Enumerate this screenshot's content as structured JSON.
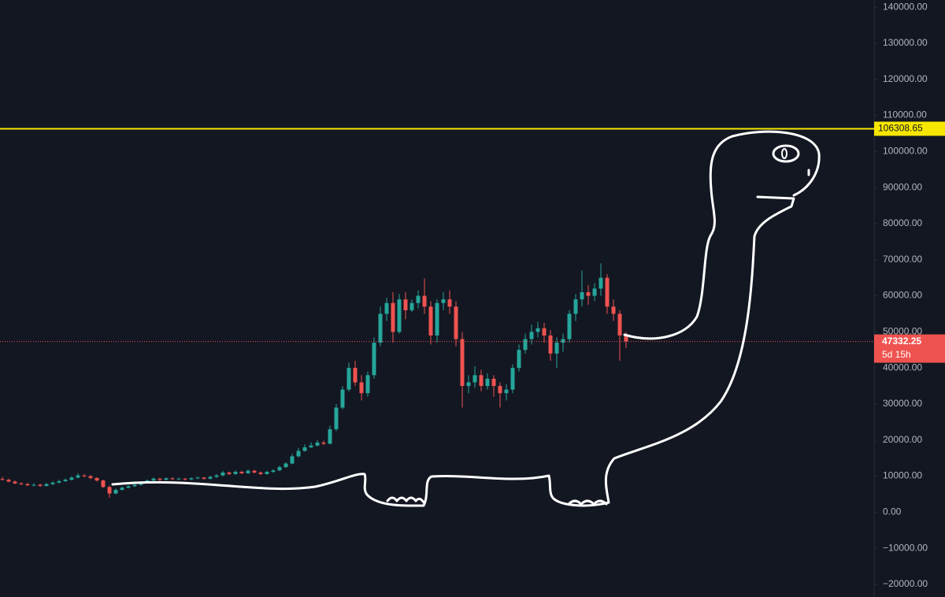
{
  "chart_data": {
    "type": "candlestick",
    "up_color": "#26a69a",
    "down_color": "#ef5350",
    "open": [
      9200,
      9000,
      8500,
      8000,
      7800,
      7500,
      7600,
      7300,
      7800,
      8200,
      8600,
      9000,
      9600,
      10200,
      10000,
      9500,
      8800,
      7000,
      5200,
      6200,
      6800,
      7200,
      7600,
      8200,
      8800,
      9300,
      9000,
      9400,
      9200,
      9300,
      9100,
      9400,
      9600,
      9300,
      9800,
      10200,
      11000,
      10600,
      11200,
      10800,
      11500,
      11000,
      10600,
      11200,
      11600,
      12500,
      13500,
      15500,
      17000,
      18000,
      18500,
      19300,
      19000,
      23000,
      29000,
      34000,
      40000,
      36000,
      33000,
      38000,
      47000,
      55000,
      58000,
      50000,
      59000,
      56000,
      58000,
      60000,
      57000,
      49000,
      58000,
      59000,
      57000,
      48000,
      35000,
      36000,
      38000,
      35000,
      37000,
      35000,
      33000,
      34000,
      40000,
      45000,
      48000,
      50000,
      51000,
      49000,
      44000,
      47000,
      48000,
      55000,
      59000,
      61000,
      60000,
      62000,
      65000,
      57000,
      55000,
      49000
    ],
    "high": [
      9800,
      9300,
      8800,
      8300,
      8100,
      8000,
      7900,
      8100,
      8600,
      9000,
      9400,
      10000,
      10800,
      10600,
      10300,
      9700,
      9000,
      7400,
      6600,
      7100,
      7500,
      7900,
      8600,
      9100,
      9700,
      9600,
      9700,
      9700,
      9600,
      9500,
      9700,
      9900,
      9800,
      10100,
      10600,
      11500,
      11300,
      11600,
      11500,
      11900,
      11800,
      11300,
      11500,
      11900,
      12900,
      13900,
      16200,
      17800,
      18800,
      19400,
      20000,
      19800,
      24000,
      30000,
      35000,
      41500,
      42000,
      38000,
      39000,
      48500,
      57000,
      59500,
      61000,
      60500,
      61000,
      59000,
      61500,
      64800,
      58500,
      59000,
      61000,
      61500,
      58500,
      50000,
      38000,
      40500,
      39500,
      38500,
      38000,
      36000,
      35500,
      41000,
      46500,
      49500,
      52000,
      52800,
      52500,
      50500,
      48500,
      49500,
      56000,
      60500,
      67000,
      63000,
      63500,
      69000,
      66000,
      59000,
      56000,
      50000
    ],
    "low": [
      8800,
      8300,
      7800,
      7500,
      7200,
      7200,
      7000,
      7100,
      7500,
      8000,
      8400,
      8800,
      9400,
      9700,
      9200,
      8500,
      6700,
      4000,
      5000,
      6000,
      6600,
      7000,
      7400,
      8000,
      8600,
      8600,
      8800,
      8900,
      9000,
      8800,
      8900,
      9200,
      9000,
      9100,
      9500,
      10000,
      10300,
      10400,
      10600,
      10600,
      10700,
      10300,
      10400,
      10900,
      11400,
      12300,
      13300,
      15200,
      16800,
      17800,
      18200,
      18600,
      18800,
      22500,
      28500,
      33500,
      35000,
      31000,
      32000,
      37000,
      46000,
      53000,
      47000,
      49500,
      53500,
      55500,
      56500,
      55000,
      46500,
      47000,
      56000,
      55000,
      46000,
      29000,
      33000,
      34500,
      33500,
      34000,
      32000,
      29000,
      31000,
      33000,
      39000,
      44000,
      46500,
      48500,
      47000,
      42000,
      40000,
      44500,
      47000,
      53000,
      57000,
      57500,
      58500,
      60000,
      55000,
      53000,
      42000,
      45500
    ],
    "close": [
      9000,
      8500,
      8000,
      7800,
      7500,
      7600,
      7300,
      7800,
      8200,
      8600,
      9000,
      9600,
      10200,
      10000,
      9500,
      8800,
      7000,
      5200,
      6200,
      6800,
      7200,
      7600,
      8200,
      8800,
      9300,
      9000,
      9400,
      9200,
      9300,
      9100,
      9400,
      9600,
      9300,
      9800,
      10200,
      11000,
      10600,
      11200,
      10800,
      11500,
      11000,
      10600,
      11200,
      11600,
      12500,
      13500,
      15500,
      17000,
      18000,
      18500,
      19300,
      19000,
      23000,
      29000,
      34000,
      40000,
      36000,
      33000,
      38000,
      47000,
      55000,
      58000,
      50000,
      59000,
      56000,
      58000,
      60000,
      57000,
      49000,
      58000,
      59000,
      57000,
      48000,
      35000,
      36000,
      38000,
      35000,
      37000,
      35000,
      33000,
      34000,
      40000,
      45000,
      48000,
      50000,
      51000,
      49000,
      44000,
      47000,
      48000,
      55000,
      59000,
      61000,
      60000,
      62000,
      65000,
      57000,
      55000,
      49000,
      47332.25
    ],
    "countdown": "5d 15h",
    "hline": {
      "value": 106308.65,
      "color": "#f7e600"
    },
    "ylim": [
      -23500,
      142000
    ],
    "yticks": [
      {
        "value": 140000,
        "label": "140000.00"
      },
      {
        "value": 130000,
        "label": "130000.00"
      },
      {
        "value": 120000,
        "label": "120000.00"
      },
      {
        "value": 110000,
        "label": "110000.00"
      },
      {
        "value": 100000,
        "label": "100000.00"
      },
      {
        "value": 90000,
        "label": "90000.00"
      },
      {
        "value": 80000,
        "label": "80000.00"
      },
      {
        "value": 70000,
        "label": "70000.00"
      },
      {
        "value": 60000,
        "label": "60000.00"
      },
      {
        "value": 50000,
        "label": "50000.00"
      },
      {
        "value": 40000,
        "label": "40000.00"
      },
      {
        "value": 30000,
        "label": "30000.00"
      },
      {
        "value": 20000,
        "label": "20000.00"
      },
      {
        "value": 10000,
        "label": "10000.00"
      },
      {
        "value": 0,
        "label": "0.00"
      },
      {
        "value": -10000,
        "label": "−10000.00"
      },
      {
        "value": -20000,
        "label": "−20000.00"
      }
    ]
  }
}
